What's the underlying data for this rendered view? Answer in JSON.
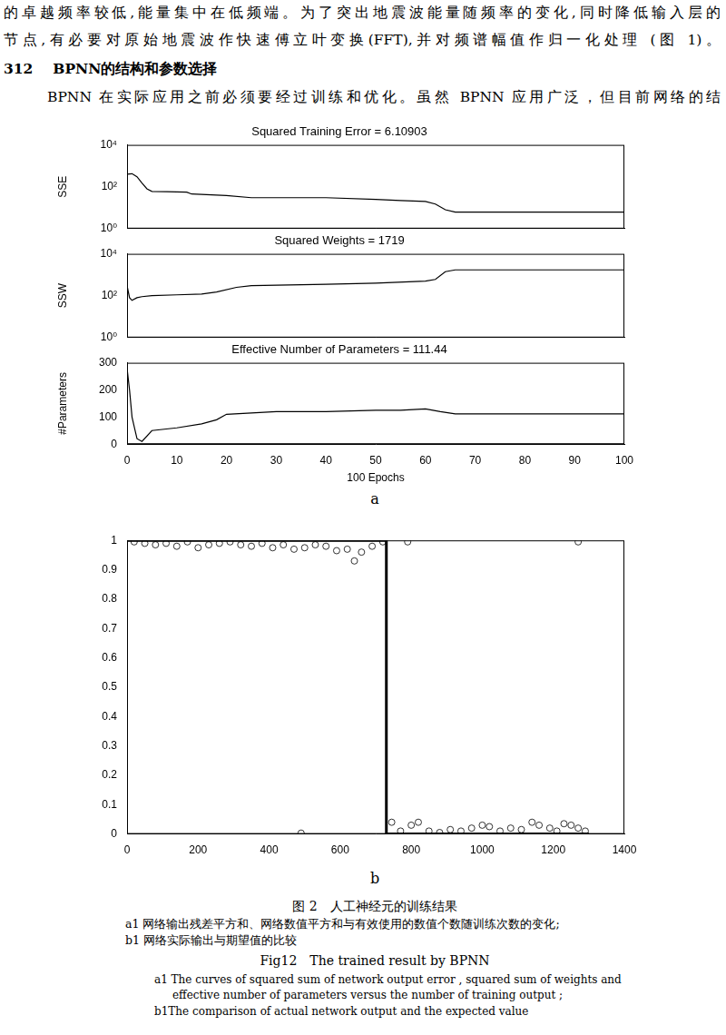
{
  "text": {
    "lines": [
      "的卓越频率较低,能量集中在低频端。为了突出地震波能量随频率的变化,同时降低输入层的",
      "节点,有必要对原始地震波作快速傅立叶变换(FFT),并对频谱幅值作归一化处理 (图 1)。"
    ],
    "heading_number": "312",
    "heading_title": "BPNN的结构和参数选择",
    "paragraph": "BPNN 在实际应用之前必须要经过训练和优化。虽然 BPNN 应用广泛，但目前网络的结"
  },
  "chart_data": [
    {
      "type": "line",
      "title": "Squared Training Error = 6.10903",
      "y_label": "SSE",
      "log": "y",
      "grid": false,
      "tick_labels": "y",
      "x": [
        0,
        1,
        2,
        3,
        4,
        5,
        8,
        12,
        13,
        20,
        25,
        40,
        50,
        55,
        60,
        62,
        64,
        66,
        80,
        100
      ],
      "series": [
        {
          "color": "#000000",
          "line_style": "solid",
          "values": [
            400,
            420,
            300,
            150,
            80,
            60,
            58,
            55,
            45,
            38,
            30,
            30,
            25,
            22,
            20,
            15,
            8,
            6.10903,
            6.10903,
            6.10903
          ]
        }
      ],
      "xlim": [
        0,
        100
      ],
      "xticks": [
        0,
        10,
        20,
        30,
        40,
        50,
        60,
        70,
        80,
        90,
        100
      ],
      "ylim": [
        1,
        10000
      ],
      "yticks": [
        {
          "value": 1,
          "label": "10⁰"
        },
        {
          "value": 100,
          "label": "10²"
        },
        {
          "value": 10000,
          "label": "10⁴"
        }
      ]
    },
    {
      "type": "line",
      "title": "Squared Weights = 1719",
      "y_label": "SSW",
      "log": "y",
      "grid": false,
      "tick_labels": "y",
      "x": [
        0,
        0.5,
        1,
        2,
        3,
        5,
        10,
        15,
        18,
        22,
        25,
        40,
        50,
        60,
        62,
        64,
        66,
        80,
        100
      ],
      "series": [
        {
          "color": "#000000",
          "line_style": "solid",
          "values": [
            300,
            80,
            60,
            80,
            90,
            100,
            110,
            120,
            150,
            250,
            300,
            350,
            400,
            500,
            600,
            1400,
            1719,
            1719,
            1719
          ]
        }
      ],
      "xlim": [
        0,
        100
      ],
      "xticks": [
        0,
        10,
        20,
        30,
        40,
        50,
        60,
        70,
        80,
        90,
        100
      ],
      "ylim": [
        1,
        10000
      ],
      "yticks": [
        {
          "value": 1,
          "label": "10⁰"
        },
        {
          "value": 100,
          "label": "10²"
        },
        {
          "value": 10000,
          "label": "10⁴"
        }
      ]
    },
    {
      "type": "line",
      "title": "Effective Number of Parameters = 111.44",
      "x_label": "100 Epochs",
      "y_label": "#Parameters",
      "grid": false,
      "x": [
        0,
        0.5,
        1,
        1.5,
        2,
        3,
        5,
        10,
        15,
        18,
        20,
        25,
        30,
        40,
        50,
        55,
        60,
        63,
        66,
        80,
        100
      ],
      "series": [
        {
          "color": "#000000",
          "line_style": "solid",
          "values": [
            280,
            200,
            100,
            60,
            20,
            10,
            50,
            60,
            75,
            90,
            110,
            115,
            120,
            120,
            125,
            125,
            130,
            120,
            111.44,
            111.44,
            111.44
          ]
        }
      ],
      "xlim": [
        0,
        100
      ],
      "xticks": [
        0,
        10,
        20,
        30,
        40,
        50,
        60,
        70,
        80,
        90,
        100
      ],
      "ylim": [
        0,
        300
      ],
      "yticks": [
        0,
        100,
        200,
        300
      ]
    },
    {
      "type": "scatter",
      "grid": false,
      "series": [
        {
          "type": "line",
          "color": "#000000",
          "line_style": "solid",
          "x": [
            0,
            730,
            730,
            1300
          ],
          "values": [
            1,
            1,
            0,
            0
          ]
        },
        {
          "type": "scatter",
          "marker": "circle",
          "color": "#000000",
          "x": [
            20,
            50,
            80,
            110,
            140,
            170,
            200,
            230,
            260,
            290,
            320,
            350,
            380,
            410,
            440,
            470,
            500,
            530,
            560,
            590,
            620,
            640,
            660,
            690,
            720,
            490,
            745,
            770,
            800,
            820,
            850,
            880,
            910,
            940,
            970,
            1000,
            1020,
            1050,
            1080,
            1110,
            1140,
            1160,
            1190,
            1210,
            1230,
            1250,
            1270,
            1290,
            790,
            1270
          ],
          "values": [
            0.995,
            0.99,
            0.985,
            0.99,
            0.98,
            0.995,
            0.975,
            0.985,
            0.99,
            0.995,
            0.985,
            0.98,
            0.99,
            0.975,
            0.985,
            0.97,
            0.975,
            0.985,
            0.98,
            0.965,
            0.97,
            0.93,
            0.96,
            0.98,
            0.995,
            0.003,
            0.04,
            0.01,
            0.03,
            0.04,
            0.01,
            0.005,
            0.015,
            0.01,
            0.02,
            0.03,
            0.025,
            0.01,
            0.02,
            0.015,
            0.04,
            0.03,
            0.02,
            0.01,
            0.035,
            0.03,
            0.02,
            0.01,
            0.995,
            0.995
          ]
        }
      ],
      "xlim": [
        0,
        1400
      ],
      "xticks": [
        0,
        200,
        400,
        600,
        800,
        1000,
        1200,
        1400
      ],
      "ylim": [
        0,
        1
      ],
      "yticks": [
        0,
        0.1,
        0.2,
        0.3,
        0.4,
        0.5,
        0.6,
        0.7,
        0.8,
        0.9,
        1
      ]
    }
  ],
  "panel_labels": [
    "a",
    "b"
  ],
  "caption": {
    "zh_title": "图 2　人工神经元的训练结果",
    "zh_lines": [
      "a1 网络输出残差平方和、网络数值平方和与有效使用的数值个数随训练次数的变化;",
      "b1 网络实际输出与期望值的比较"
    ],
    "en_title": "Fig12　The trained result by BPNN",
    "en_lines": [
      "a1 The curves of squared sum of network output error , squared sum of weights and",
      "effective number of parameters versus the number of training output ;",
      "b1The comparison of actual network output and the expected value"
    ]
  }
}
